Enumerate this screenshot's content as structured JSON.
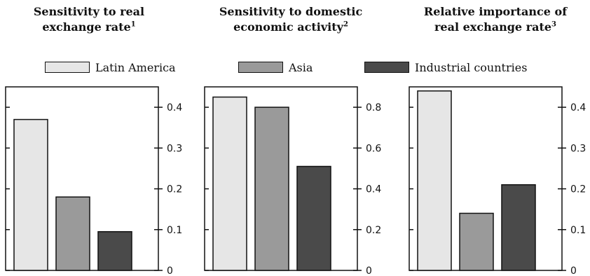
{
  "legend": {
    "latin_america": "Latin America",
    "asia": "Asia",
    "industrial": "Industrial countries"
  },
  "colors": {
    "latin_america": "#e6e6e6",
    "asia": "#9a9a9a",
    "industrial": "#4a4a4a"
  },
  "chart_data": [
    {
      "type": "bar",
      "title": "Sensitivity to real exchange rate",
      "title_line1": "Sensitivity to real",
      "title_line2": "exchange rate",
      "footnote": "1",
      "categories": [
        "Latin America",
        "Asia",
        "Industrial countries"
      ],
      "values": [
        0.37,
        0.18,
        0.095
      ],
      "yticks": [
        0,
        0.1,
        0.2,
        0.3,
        0.4
      ],
      "ytick_labels": [
        "0",
        "0.1",
        "0.2",
        "0.3",
        "0.4"
      ],
      "ylim": [
        0,
        0.45
      ],
      "xlabel": "",
      "ylabel": ""
    },
    {
      "type": "bar",
      "title": "Sensitivity to domestic economic activity",
      "title_line1": "Sensitivity to domestic",
      "title_line2": "economic activity",
      "footnote": "2",
      "categories": [
        "Latin America",
        "Asia",
        "Industrial countries"
      ],
      "values": [
        0.85,
        0.8,
        0.51
      ],
      "yticks": [
        0,
        0.2,
        0.4,
        0.6,
        0.8
      ],
      "ytick_labels": [
        "0",
        "0.2",
        "0.4",
        "0.6",
        "0.8"
      ],
      "ylim": [
        0,
        0.9
      ],
      "xlabel": "",
      "ylabel": ""
    },
    {
      "type": "bar",
      "title": "Relative importance of real exchange rate",
      "title_line1": "Relative importance of",
      "title_line2": "real exchange rate",
      "footnote": "3",
      "categories": [
        "Latin America",
        "Asia",
        "Industrial countries"
      ],
      "values": [
        0.44,
        0.14,
        0.21
      ],
      "yticks": [
        0,
        0.1,
        0.2,
        0.3,
        0.4
      ],
      "ytick_labels": [
        "0",
        "0.1",
        "0.2",
        "0.3",
        "0.4"
      ],
      "ylim": [
        0,
        0.45
      ],
      "xlabel": "",
      "ylabel": ""
    }
  ]
}
